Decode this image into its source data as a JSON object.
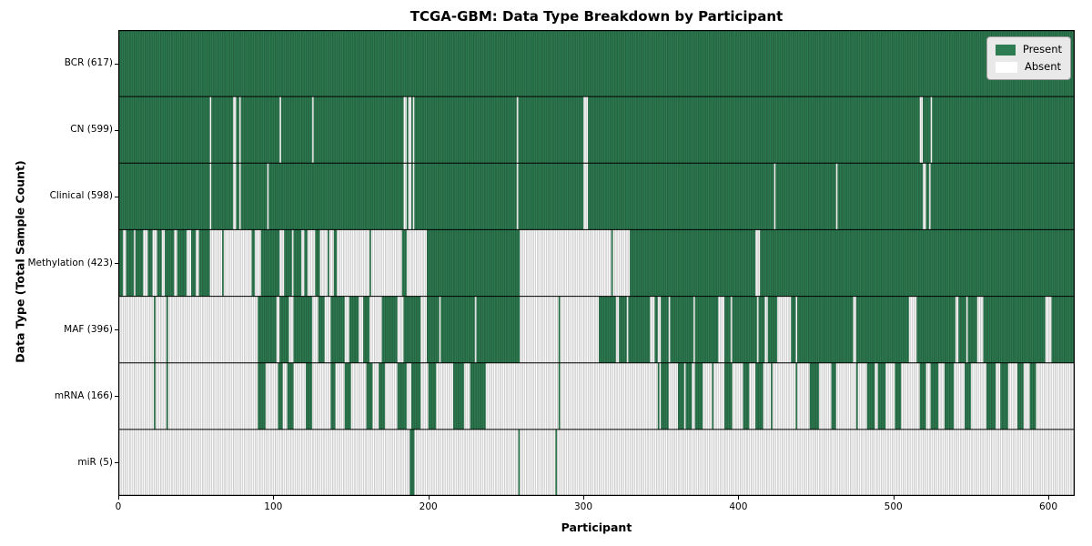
{
  "chart_data": {
    "type": "heatmap",
    "title": "TCGA-GBM: Data Type Breakdown by Participant",
    "xlabel": "Participant",
    "ylabel": "Data Type (Total Sample Count)",
    "x_ticks": [
      0,
      100,
      200,
      300,
      400,
      500,
      600
    ],
    "x_range": [
      0,
      617
    ],
    "n_participants": 617,
    "grid": false,
    "legend": {
      "position": "upper right",
      "entries": [
        {
          "label": "Present",
          "color": "#2e7d52"
        },
        {
          "label": "Absent",
          "color": "#ffffff"
        }
      ]
    },
    "colors": {
      "present": "#2e7d52",
      "absent": "#ffffff",
      "bar_edge": "#000000",
      "separator": "#000000"
    },
    "rows": [
      {
        "data_type": "BCR",
        "total": 617,
        "label": "BCR (617)",
        "present_segments": [
          [
            0,
            616
          ]
        ]
      },
      {
        "data_type": "CN",
        "total": 599,
        "label": "CN (599)",
        "present_segments": [
          [
            0,
            58
          ],
          [
            60,
            73
          ],
          [
            76,
            77
          ],
          [
            79,
            103
          ],
          [
            105,
            124
          ],
          [
            126,
            183
          ],
          [
            186,
            186
          ],
          [
            189,
            189
          ],
          [
            191,
            256
          ],
          [
            258,
            299
          ],
          [
            303,
            516
          ],
          [
            519,
            523
          ],
          [
            525,
            616
          ]
        ]
      },
      {
        "data_type": "Clinical",
        "total": 598,
        "label": "Clinical (598)",
        "present_segments": [
          [
            0,
            58
          ],
          [
            60,
            73
          ],
          [
            76,
            77
          ],
          [
            79,
            95
          ],
          [
            97,
            183
          ],
          [
            186,
            186
          ],
          [
            189,
            189
          ],
          [
            191,
            256
          ],
          [
            258,
            299
          ],
          [
            303,
            422
          ],
          [
            424,
            462
          ],
          [
            464,
            518
          ],
          [
            521,
            522
          ],
          [
            524,
            616
          ]
        ]
      },
      {
        "data_type": "Methylation",
        "total": 423,
        "label": "Methylation (423)",
        "present_segments": [
          [
            0,
            2
          ],
          [
            5,
            9
          ],
          [
            11,
            15
          ],
          [
            19,
            21
          ],
          [
            25,
            27
          ],
          [
            30,
            35
          ],
          [
            38,
            43
          ],
          [
            47,
            49
          ],
          [
            52,
            58
          ],
          [
            67,
            67
          ],
          [
            86,
            87
          ],
          [
            92,
            103
          ],
          [
            107,
            111
          ],
          [
            113,
            117
          ],
          [
            120,
            121
          ],
          [
            127,
            129
          ],
          [
            135,
            135
          ],
          [
            139,
            140
          ],
          [
            162,
            162
          ],
          [
            183,
            185
          ],
          [
            199,
            258
          ],
          [
            318,
            318
          ],
          [
            330,
            410
          ],
          [
            414,
            616
          ]
        ]
      },
      {
        "data_type": "MAF",
        "total": 396,
        "label": "MAF (396)",
        "present_segments": [
          [
            23,
            23
          ],
          [
            31,
            31
          ],
          [
            90,
            101
          ],
          [
            104,
            109
          ],
          [
            113,
            124
          ],
          [
            129,
            132
          ],
          [
            137,
            145
          ],
          [
            149,
            154
          ],
          [
            158,
            161
          ],
          [
            170,
            179
          ],
          [
            184,
            194
          ],
          [
            199,
            206
          ],
          [
            208,
            229
          ],
          [
            231,
            258
          ],
          [
            284,
            284
          ],
          [
            310,
            320
          ],
          [
            323,
            327
          ],
          [
            329,
            342
          ],
          [
            346,
            347
          ],
          [
            350,
            354
          ],
          [
            356,
            370
          ],
          [
            372,
            386
          ],
          [
            391,
            394
          ],
          [
            396,
            411
          ],
          [
            413,
            416
          ],
          [
            419,
            424
          ],
          [
            434,
            436
          ],
          [
            438,
            473
          ],
          [
            476,
            509
          ],
          [
            515,
            539
          ],
          [
            542,
            546
          ],
          [
            548,
            553
          ],
          [
            558,
            597
          ],
          [
            602,
            616
          ]
        ]
      },
      {
        "data_type": "mRNA",
        "total": 166,
        "label": "mRNA (166)",
        "present_segments": [
          [
            23,
            23
          ],
          [
            31,
            31
          ],
          [
            90,
            94
          ],
          [
            103,
            105
          ],
          [
            109,
            112
          ],
          [
            121,
            124
          ],
          [
            137,
            139
          ],
          [
            146,
            149
          ],
          [
            160,
            163
          ],
          [
            168,
            171
          ],
          [
            180,
            185
          ],
          [
            189,
            194
          ],
          [
            200,
            204
          ],
          [
            216,
            222
          ],
          [
            227,
            236
          ],
          [
            284,
            284
          ],
          [
            348,
            348
          ],
          [
            350,
            354
          ],
          [
            361,
            364
          ],
          [
            366,
            369
          ],
          [
            372,
            376
          ],
          [
            383,
            383
          ],
          [
            391,
            395
          ],
          [
            403,
            406
          ],
          [
            411,
            415
          ],
          [
            421,
            421
          ],
          [
            437,
            437
          ],
          [
            446,
            451
          ],
          [
            460,
            462
          ],
          [
            476,
            476
          ],
          [
            483,
            487
          ],
          [
            490,
            494
          ],
          [
            501,
            504
          ],
          [
            517,
            520
          ],
          [
            524,
            528
          ],
          [
            533,
            538
          ],
          [
            546,
            549
          ],
          [
            560,
            565
          ],
          [
            569,
            573
          ],
          [
            580,
            583
          ],
          [
            588,
            591
          ]
        ]
      },
      {
        "data_type": "miR",
        "total": 5,
        "label": "miR (5)",
        "present_segments": [
          [
            188,
            190
          ],
          [
            258,
            258
          ],
          [
            282,
            282
          ]
        ]
      }
    ]
  }
}
